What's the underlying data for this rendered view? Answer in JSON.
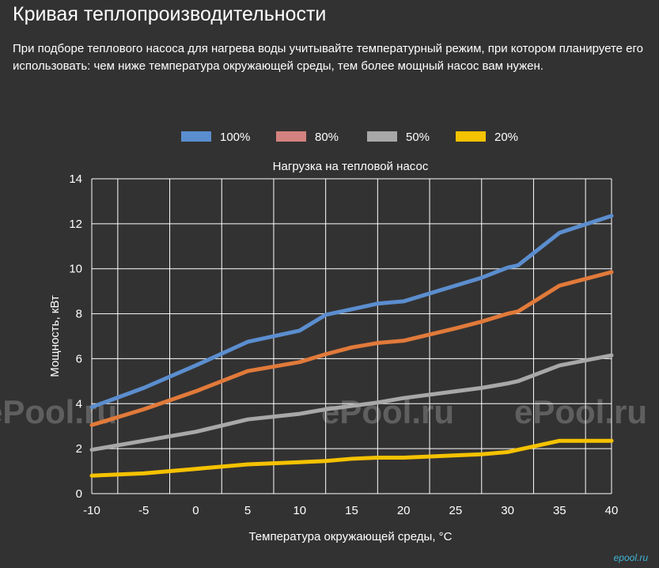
{
  "page": {
    "title": "Кривая теплопроизводительности",
    "description": "При подборе теплового насоса для нагрева воды учитывайте температурный режим, при котором планируете его использовать: чем ниже температура окружающей среды, тем более мощный насос вам нужен."
  },
  "watermark": {
    "text": "ePool.ru",
    "corner_text": "epool.ru"
  },
  "chart_data": {
    "type": "line",
    "title": "Нагрузка на тепловой насос",
    "xlabel": "Температура окружающей среды, °C",
    "ylabel": "Мощность, кВт",
    "x": [
      -10,
      -5,
      0,
      5,
      10,
      12.5,
      15,
      17.5,
      20,
      25,
      27.5,
      30,
      31,
      35,
      40
    ],
    "x_ticks": [
      -10,
      -5,
      0,
      5,
      10,
      15,
      20,
      25,
      30,
      35,
      40
    ],
    "y_ticks": [
      0,
      2,
      4,
      6,
      8,
      10,
      12,
      14
    ],
    "xlim": [
      -10,
      40
    ],
    "ylim": [
      0,
      14
    ],
    "grid": true,
    "legend_position": "top",
    "background": "#333232",
    "grid_color": "#ffffff",
    "series": [
      {
        "name": "100%",
        "color": "#5b8ecf",
        "values": [
          3.85,
          4.7,
          5.7,
          6.75,
          7.25,
          7.95,
          8.2,
          8.45,
          8.55,
          9.25,
          9.6,
          10.05,
          10.15,
          11.6,
          12.35
        ]
      },
      {
        "name": "80%",
        "color": "#d4827f",
        "line_color": "#e17a3a",
        "values": [
          3.05,
          3.75,
          4.55,
          5.45,
          5.85,
          6.2,
          6.5,
          6.7,
          6.8,
          7.35,
          7.65,
          8.0,
          8.1,
          9.25,
          9.85
        ]
      },
      {
        "name": "50%",
        "color": "#a8a8a8",
        "values": [
          1.95,
          2.35,
          2.75,
          3.3,
          3.55,
          3.75,
          3.9,
          4.05,
          4.25,
          4.55,
          4.7,
          4.9,
          5.0,
          5.7,
          6.15
        ]
      },
      {
        "name": "20%",
        "color": "#f5c200",
        "values": [
          0.8,
          0.9,
          1.1,
          1.3,
          1.4,
          1.45,
          1.55,
          1.6,
          1.6,
          1.7,
          1.75,
          1.85,
          1.95,
          2.35,
          2.35
        ]
      }
    ]
  }
}
